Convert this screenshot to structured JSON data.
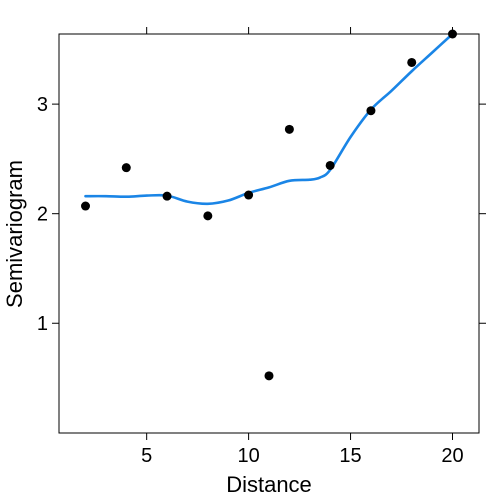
{
  "chart_data": {
    "type": "scatter",
    "title": "",
    "xlabel": "Distance",
    "ylabel": "Semivariogram",
    "xlim": [
      0.7,
      21.3
    ],
    "ylim": [
      -0.0017,
      3.64
    ],
    "grid": false,
    "legend": "none",
    "x_ticks": [
      5,
      10,
      15,
      20
    ],
    "x_tick_labels": [
      "5",
      "10",
      "15",
      "20"
    ],
    "y_ticks": [
      1,
      2,
      3
    ],
    "y_tick_labels": [
      "1",
      "2",
      "3"
    ],
    "series": [
      {
        "kind": "points",
        "color": "#000000",
        "x": [
          2,
          4,
          6,
          8,
          10,
          11,
          12,
          14,
          16,
          18,
          20
        ],
        "y": [
          2.07,
          2.42,
          2.16,
          1.98,
          2.17,
          0.52,
          2.77,
          2.44,
          2.94,
          3.38,
          3.64
        ]
      },
      {
        "kind": "smooth",
        "color": "#1a85e6",
        "x": [
          2,
          3,
          4,
          5,
          6,
          7,
          8,
          9,
          10,
          11,
          12,
          13,
          13.5,
          14,
          15,
          16,
          17,
          18,
          19,
          20
        ],
        "y": [
          2.16,
          2.16,
          2.155,
          2.165,
          2.165,
          2.11,
          2.09,
          2.12,
          2.19,
          2.24,
          2.3,
          2.31,
          2.33,
          2.4,
          2.7,
          2.95,
          3.12,
          3.3,
          3.47,
          3.64
        ]
      }
    ]
  }
}
